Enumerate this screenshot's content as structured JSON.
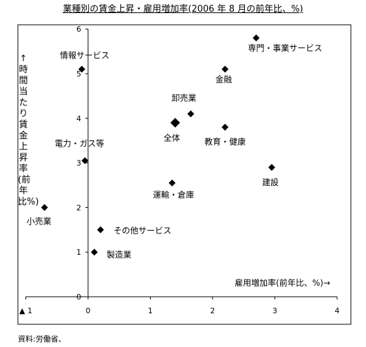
{
  "chart_data": {
    "type": "scatter",
    "title": "業種別の賃金上昇・雇用増加率(2006 年 8 月の前年比、%)",
    "xlabel": "雇用増加率(前年比、%)→",
    "ylabel": "↑時間当たり賃金上昇率(前年比%)",
    "xlim": [
      -1,
      4
    ],
    "ylim": [
      0,
      6
    ],
    "x_ticks": [
      -1,
      0,
      1,
      2,
      3,
      4
    ],
    "x_tick_labels": [
      "▲ 1",
      "0",
      "1",
      "2",
      "3",
      "4"
    ],
    "y_ticks": [
      0,
      1,
      2,
      3,
      4,
      5,
      6
    ],
    "y_tick_labels": [
      "0",
      "1",
      "2",
      "3",
      "4",
      "5",
      "6"
    ],
    "grid": false,
    "points": [
      {
        "label": "専門・事業サービス",
        "x": 2.7,
        "y": 5.8
      },
      {
        "label": "情報サービス",
        "x": -0.1,
        "y": 5.1
      },
      {
        "label": "金融",
        "x": 2.2,
        "y": 5.1
      },
      {
        "label": "卸売業",
        "x": 1.65,
        "y": 4.1
      },
      {
        "label": "全体",
        "x": 1.4,
        "y": 3.9,
        "emphasis": true
      },
      {
        "label": "教育・健康",
        "x": 2.2,
        "y": 3.8
      },
      {
        "label": "電力・ガス等",
        "x": -0.05,
        "y": 3.05
      },
      {
        "label": "建設",
        "x": 2.95,
        "y": 2.9
      },
      {
        "label": "運輸・倉庫",
        "x": 1.35,
        "y": 2.55
      },
      {
        "label": "小売業",
        "x": -0.7,
        "y": 2.0
      },
      {
        "label": "その他サービス",
        "x": 0.2,
        "y": 1.5
      },
      {
        "label": "製造業",
        "x": 0.1,
        "y": 1.0
      }
    ]
  },
  "source": "資料:労働省、"
}
